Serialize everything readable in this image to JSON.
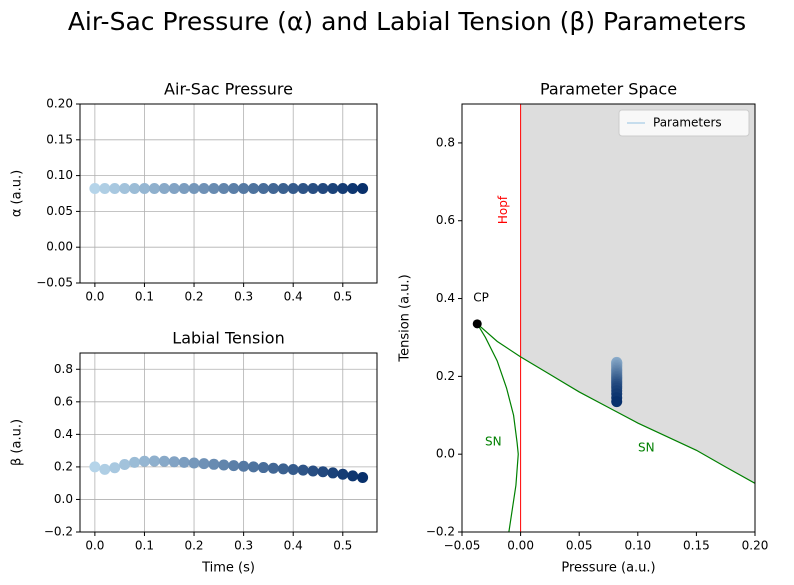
{
  "title": "Air-Sac Pressure (α) and Labial Tension (β) Parameters",
  "chart_data": [
    {
      "type": "scatter",
      "title": "Air-Sac Pressure",
      "ylabel": "α (a.u.)",
      "grid": true,
      "xlim": [
        -0.03,
        0.569
      ],
      "ylim": [
        -0.05,
        0.2
      ],
      "xticks": [
        {
          "value": 0,
          "label": "0.0"
        },
        {
          "value": 0.1,
          "label": "0.1"
        },
        {
          "value": 0.2,
          "label": "0.2"
        },
        {
          "value": 0.3,
          "label": "0.3"
        },
        {
          "value": 0.4,
          "label": "0.4"
        },
        0.5
      ],
      "yticks": [
        {
          "value": -0.05,
          "label": "−0.05"
        },
        {
          "value": 0,
          "label": "0.00"
        },
        {
          "value": 0.05,
          "label": "0.05"
        },
        {
          "value": 0.1,
          "label": "0.10"
        },
        {
          "value": 0.15,
          "label": "0.15"
        },
        {
          "value": 0.2,
          "label": "0.20"
        }
      ],
      "series": [
        {
          "colors": [
            "#b5d4e9",
            "#08306b"
          ],
          "x": [
            0,
            0.02,
            0.04,
            0.06,
            0.08,
            0.1,
            0.12,
            0.14,
            0.16,
            0.18,
            0.2,
            0.22,
            0.24,
            0.26,
            0.28,
            0.3,
            0.32,
            0.34,
            0.36,
            0.38,
            0.4,
            0.42,
            0.44,
            0.46,
            0.48,
            0.5,
            0.52,
            0.54
          ],
          "values": [
            0.082,
            0.082,
            0.082,
            0.082,
            0.082,
            0.082,
            0.082,
            0.082,
            0.082,
            0.082,
            0.082,
            0.082,
            0.082,
            0.082,
            0.082,
            0.082,
            0.082,
            0.082,
            0.082,
            0.082,
            0.082,
            0.082,
            0.082,
            0.082,
            0.082,
            0.082,
            0.082,
            0.082
          ]
        }
      ]
    },
    {
      "type": "scatter",
      "title": "Labial Tension",
      "xlabel": "Time (s)",
      "ylabel": "β (a.u.)",
      "grid": true,
      "xlim": [
        -0.03,
        0.569
      ],
      "ylim": [
        -0.2,
        0.9
      ],
      "xticks": [
        {
          "value": 0,
          "label": "0.0"
        },
        {
          "value": 0.1,
          "label": "0.1"
        },
        {
          "value": 0.2,
          "label": "0.2"
        },
        {
          "value": 0.3,
          "label": "0.3"
        },
        {
          "value": 0.4,
          "label": "0.4"
        },
        0.5
      ],
      "yticks": [
        {
          "value": -0.2,
          "label": "−0.2"
        },
        {
          "value": 0,
          "label": "0.0"
        },
        0.2,
        0.4,
        0.6,
        0.8
      ],
      "series": [
        {
          "colors": [
            "#b5d4e9",
            "#08306b"
          ],
          "x": [
            0,
            0.02,
            0.04,
            0.06,
            0.08,
            0.1,
            0.12,
            0.14,
            0.16,
            0.18,
            0.2,
            0.22,
            0.24,
            0.26,
            0.28,
            0.3,
            0.32,
            0.34,
            0.36,
            0.38,
            0.4,
            0.42,
            0.44,
            0.46,
            0.48,
            0.5,
            0.52,
            0.54
          ],
          "values": [
            0.2,
            0.185,
            0.195,
            0.215,
            0.228,
            0.235,
            0.236,
            0.235,
            0.232,
            0.228,
            0.224,
            0.22,
            0.216,
            0.212,
            0.208,
            0.204,
            0.2,
            0.196,
            0.192,
            0.188,
            0.184,
            0.18,
            0.175,
            0.17,
            0.163,
            0.155,
            0.145,
            0.135
          ]
        }
      ]
    },
    {
      "type": "scatter",
      "title": "Parameter Space",
      "xlabel": "Pressure (a.u.)",
      "ylabel": "Tension (a.u.)",
      "grid": false,
      "legend": "upper right",
      "shade": "#dddddd",
      "xlim": [
        -0.05,
        0.2
      ],
      "ylim": [
        -0.2,
        0.9
      ],
      "xticks": [
        {
          "value": -0.05,
          "label": "−0.05"
        },
        {
          "value": 0,
          "label": "0.00"
        },
        {
          "value": 0.05,
          "label": "0.05"
        },
        {
          "value": 0.1,
          "label": "0.10"
        },
        {
          "value": 0.15,
          "label": "0.15"
        },
        {
          "value": 0.2,
          "label": "0.20"
        }
      ],
      "yticks": [
        {
          "value": -0.2,
          "label": "−0.2"
        },
        {
          "value": 0,
          "label": "0.0"
        },
        0.2,
        0.4,
        0.6,
        0.8
      ],
      "series": [
        {
          "name": "Parameters",
          "colors": [
            "#b5d4e9",
            "#08306b"
          ],
          "x": [
            0.082,
            0.082,
            0.082,
            0.082,
            0.082,
            0.082,
            0.082,
            0.082,
            0.082,
            0.082,
            0.082,
            0.082,
            0.082,
            0.082,
            0.082,
            0.082,
            0.082,
            0.082,
            0.082,
            0.082,
            0.082,
            0.082,
            0.082,
            0.082,
            0.082,
            0.082,
            0.082,
            0.082
          ],
          "values": [
            0.2,
            0.185,
            0.195,
            0.215,
            0.228,
            0.235,
            0.236,
            0.235,
            0.232,
            0.228,
            0.224,
            0.22,
            0.216,
            0.212,
            0.208,
            0.204,
            0.2,
            0.196,
            0.192,
            0.188,
            0.184,
            0.18,
            0.175,
            0.17,
            0.163,
            0.155,
            0.145,
            0.135
          ]
        }
      ],
      "curves": [
        {
          "name": "SN",
          "color": "#008000",
          "x": [
            -0.037,
            -0.03,
            -0.02,
            -0.012,
            -0.006,
            -0.003,
            -0.002,
            -0.004,
            -0.007,
            -0.01
          ],
          "values": [
            0.335,
            0.3,
            0.24,
            0.17,
            0.1,
            0.03,
            0,
            -0.08,
            -0.14,
            -0.2
          ]
        },
        {
          "name": "SN",
          "color": "#008000",
          "x": [
            -0.037,
            -0.02,
            0,
            0.025,
            0.05,
            0.075,
            0.1,
            0.125,
            0.15,
            0.175,
            0.2
          ],
          "values": [
            0.335,
            0.29,
            0.25,
            0.205,
            0.16,
            0.12,
            0.08,
            0.045,
            0.01,
            -0.033,
            -0.075
          ]
        }
      ],
      "vlines": [
        {
          "name": "Hopf",
          "color": "#ff0000",
          "x": 0
        }
      ],
      "points": [
        {
          "name": "CP",
          "color": "#000000",
          "x": -0.037,
          "y": 0.335
        }
      ]
    }
  ]
}
